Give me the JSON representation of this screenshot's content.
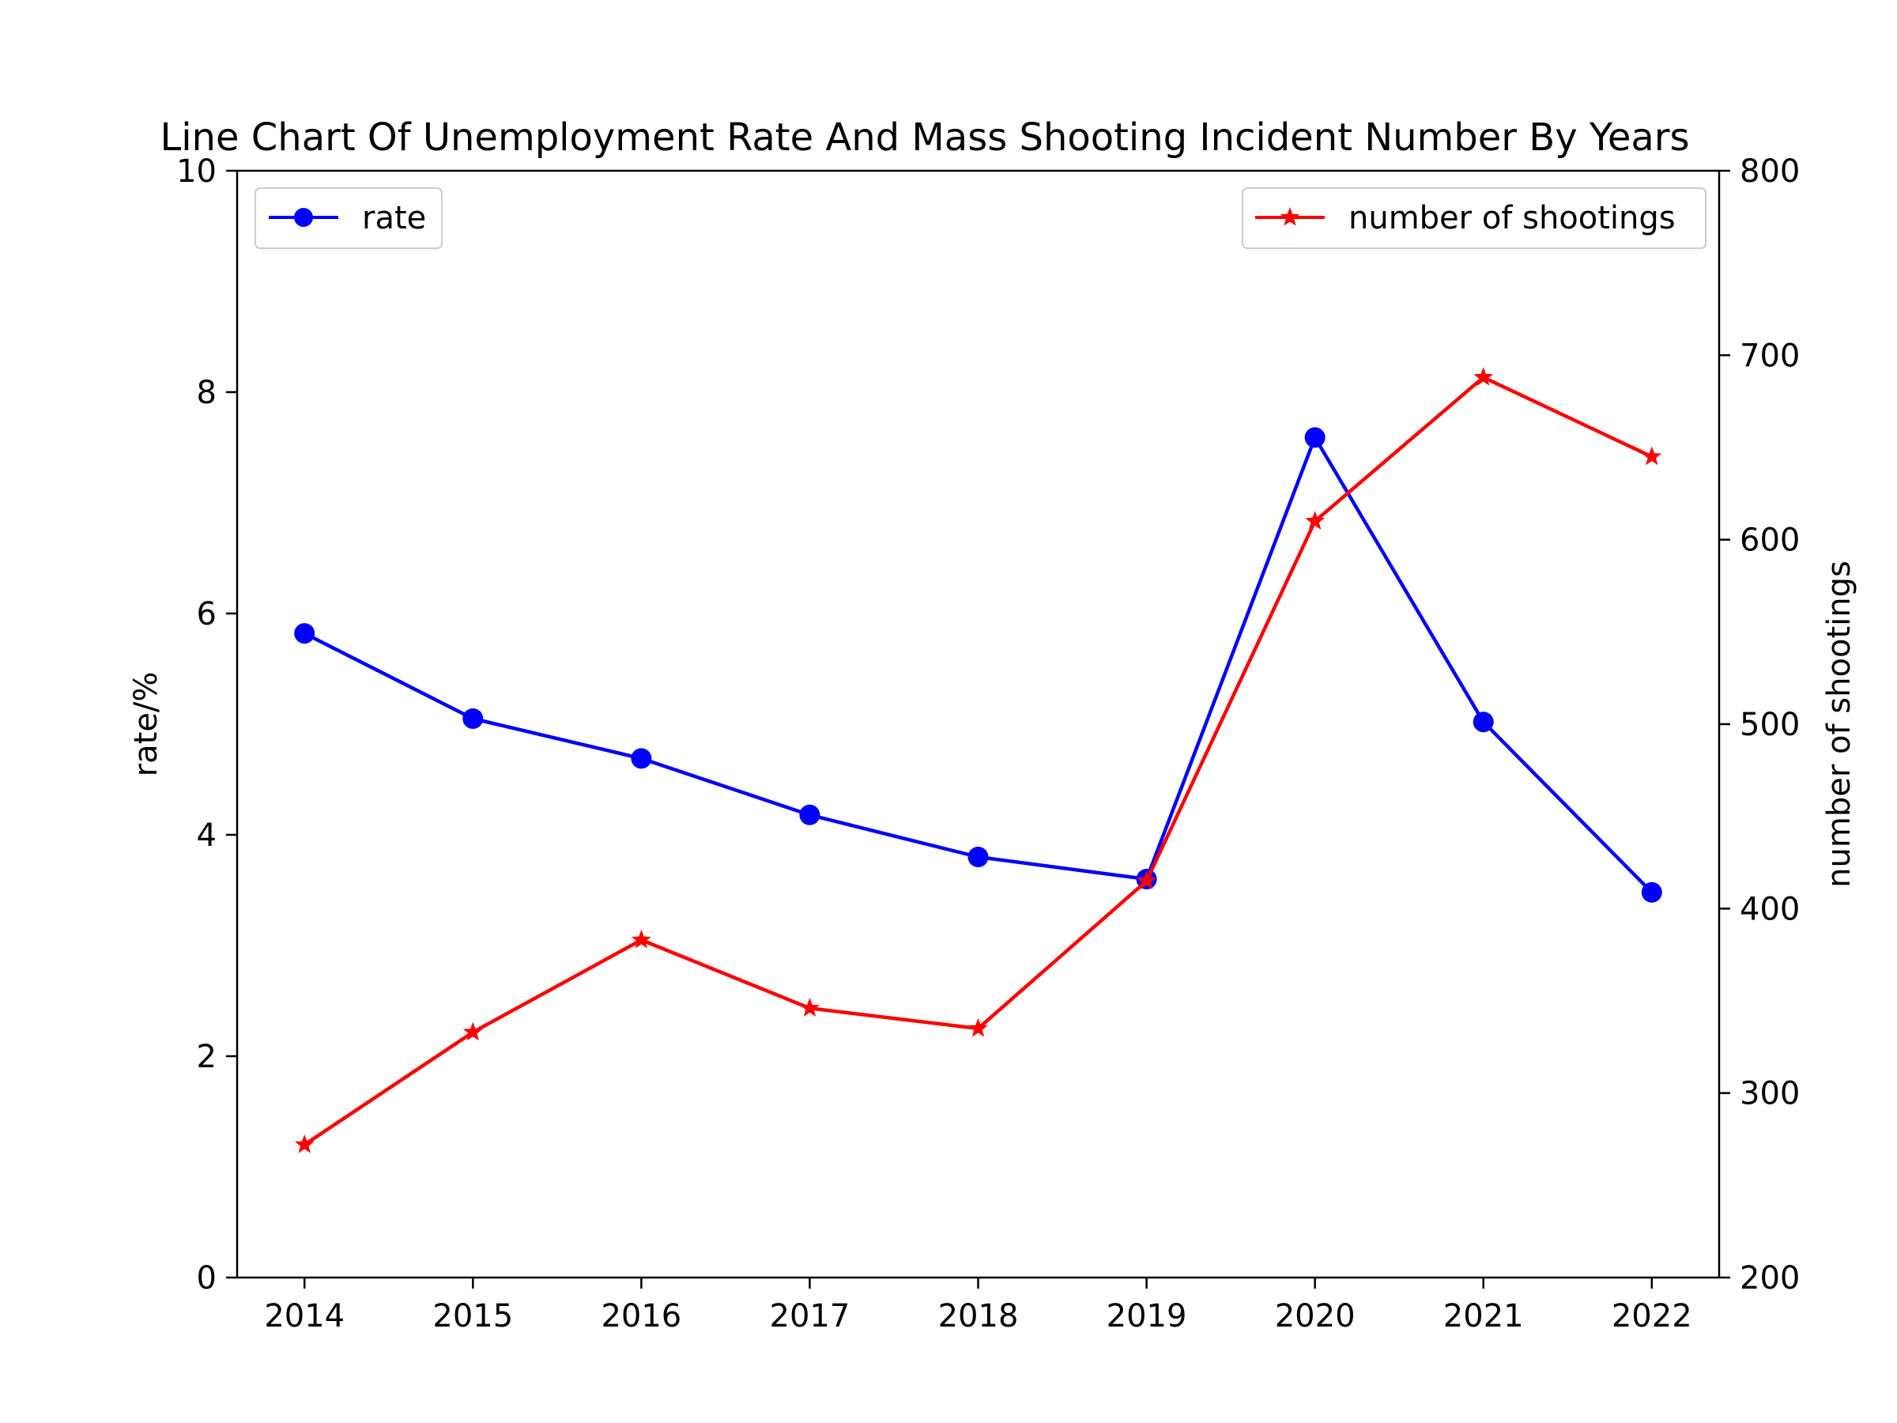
{
  "chart_data": {
    "type": "line",
    "title": "Line Chart Of Unemployment Rate And Mass Shooting Incident Number By Years",
    "xlabel": "",
    "x": [
      2014,
      2015,
      2016,
      2017,
      2018,
      2019,
      2020,
      2021,
      2022
    ],
    "x_ticks": [
      "2014",
      "2015",
      "2016",
      "2017",
      "2018",
      "2019",
      "2020",
      "2021",
      "2022"
    ],
    "xlim": [
      2013.6,
      2022.4
    ],
    "y_left": {
      "label": "rate/%",
      "lim": [
        0,
        10
      ],
      "ticks": [
        "0",
        "2",
        "4",
        "6",
        "8",
        "10"
      ],
      "tick_values": [
        0,
        2,
        4,
        6,
        8,
        10
      ]
    },
    "y_right": {
      "label": "number of shootings",
      "lim": [
        200,
        800
      ],
      "ticks": [
        "200",
        "300",
        "400",
        "500",
        "600",
        "700",
        "800"
      ],
      "tick_values": [
        200,
        300,
        400,
        500,
        600,
        700,
        800
      ]
    },
    "series": [
      {
        "name": "rate",
        "axis": "left",
        "color": "#0000ff",
        "marker": "circle",
        "values": [
          5.82,
          5.05,
          4.69,
          4.18,
          3.8,
          3.6,
          7.59,
          5.02,
          3.48
        ]
      },
      {
        "name": "number of shootings",
        "axis": "right",
        "color": "#ff0000",
        "marker": "star",
        "values": [
          272,
          333,
          383,
          346,
          335,
          415,
          610,
          688,
          645
        ]
      }
    ],
    "legends": [
      {
        "series": 0,
        "placement": "upper-left"
      },
      {
        "series": 1,
        "placement": "upper-right"
      }
    ],
    "grid": false
  }
}
